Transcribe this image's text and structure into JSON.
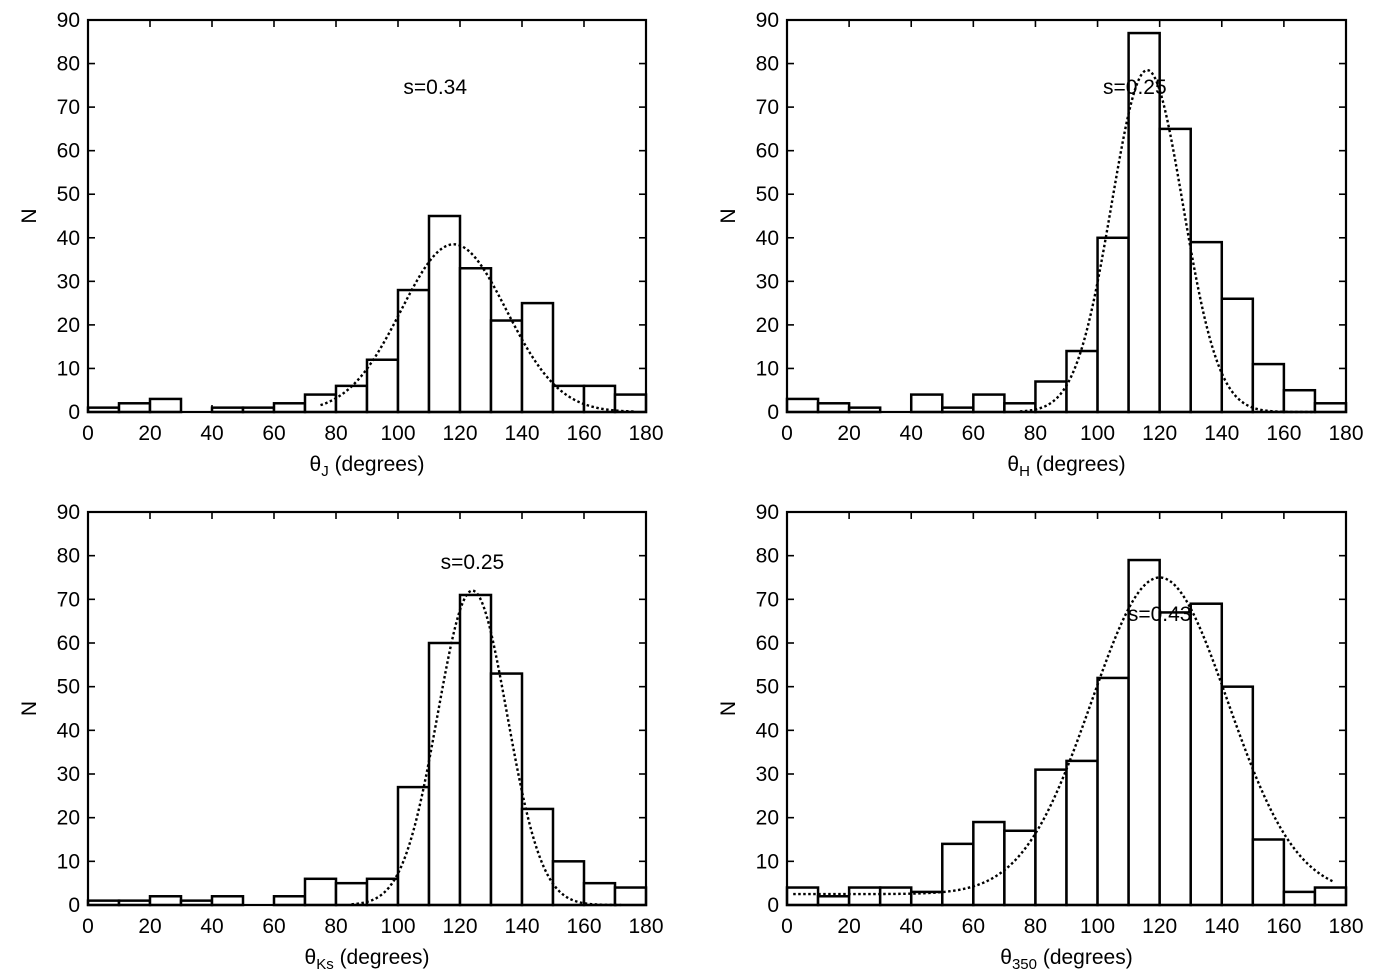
{
  "chart_data": [
    {
      "type": "bar",
      "bin_width": 10,
      "x": [
        0,
        10,
        20,
        30,
        40,
        50,
        60,
        70,
        80,
        90,
        100,
        110,
        120,
        130,
        140,
        150,
        160,
        170
      ],
      "values": [
        1,
        2,
        3,
        0,
        1,
        1,
        2,
        4,
        6,
        12,
        28,
        45,
        33,
        21,
        25,
        6,
        6,
        4
      ],
      "fit": {
        "style": "dotted",
        "mean": 118,
        "sigma": 17,
        "peak": 38.5,
        "x_range": [
          75,
          176
        ]
      },
      "annotation": "s=0.34",
      "xlabel_symbol": "θ",
      "xlabel_subscript": "J",
      "xlabel_rest": " (degrees)",
      "ylabel": "N",
      "xlim": [
        0,
        180
      ],
      "ylim": [
        0,
        90
      ],
      "xticks": [
        0,
        20,
        40,
        60,
        80,
        100,
        120,
        140,
        160,
        180
      ],
      "yticks": [
        0,
        10,
        20,
        30,
        40,
        50,
        60,
        70,
        80,
        90
      ],
      "grid": false
    },
    {
      "type": "bar",
      "bin_width": 10,
      "x": [
        0,
        10,
        20,
        30,
        40,
        50,
        60,
        70,
        80,
        90,
        100,
        110,
        120,
        130,
        140,
        150,
        160,
        170
      ],
      "values": [
        3,
        2,
        1,
        0,
        4,
        1,
        4,
        2,
        7,
        14,
        40,
        87,
        65,
        39,
        26,
        11,
        5,
        2
      ],
      "fit": {
        "style": "dotted",
        "mean": 116,
        "sigma": 11.5,
        "peak": 78.5,
        "x_range": [
          75,
          170
        ]
      },
      "annotation": "s=0.25",
      "xlabel_symbol": "θ",
      "xlabel_subscript": "H",
      "xlabel_rest": " (degrees)",
      "ylabel": "N",
      "xlim": [
        0,
        180
      ],
      "ylim": [
        0,
        90
      ],
      "xticks": [
        0,
        20,
        40,
        60,
        80,
        100,
        120,
        140,
        160,
        180
      ],
      "yticks": [
        0,
        10,
        20,
        30,
        40,
        50,
        60,
        70,
        80,
        90
      ],
      "grid": false
    },
    {
      "type": "bar",
      "bin_width": 10,
      "x": [
        0,
        10,
        20,
        30,
        40,
        50,
        60,
        70,
        80,
        90,
        100,
        110,
        120,
        130,
        140,
        150,
        160,
        170
      ],
      "values": [
        1,
        1,
        2,
        1,
        2,
        0,
        2,
        6,
        5,
        6,
        27,
        60,
        71,
        53,
        22,
        10,
        5,
        4
      ],
      "fit": {
        "style": "dotted",
        "mean": 124,
        "sigma": 11.2,
        "peak": 72,
        "x_range": [
          85,
          172
        ]
      },
      "annotation": "s=0.25",
      "xlabel_symbol": "θ",
      "xlabel_subscript": "Ks",
      "xlabel_rest": " (degrees)",
      "ylabel": "N",
      "xlim": [
        0,
        180
      ],
      "ylim": [
        0,
        90
      ],
      "xticks": [
        0,
        20,
        40,
        60,
        80,
        100,
        120,
        140,
        160,
        180
      ],
      "yticks": [
        0,
        10,
        20,
        30,
        40,
        50,
        60,
        70,
        80,
        90
      ],
      "grid": false
    },
    {
      "type": "bar",
      "bin_width": 10,
      "x": [
        0,
        10,
        20,
        30,
        40,
        50,
        60,
        70,
        80,
        90,
        100,
        110,
        120,
        130,
        140,
        150,
        160,
        170
      ],
      "values": [
        4,
        2,
        4,
        4,
        3,
        14,
        19,
        17,
        31,
        33,
        52,
        79,
        67,
        69,
        50,
        15,
        3,
        4
      ],
      "fit": {
        "style": "dotted",
        "mean": 120,
        "sigma": 22,
        "peak": 75,
        "x_range": [
          2,
          176
        ],
        "baseline": 2.5
      },
      "annotation": "s=0.43",
      "xlabel_symbol": "θ",
      "xlabel_subscript": "350",
      "xlabel_rest": " (degrees)",
      "ylabel": "N",
      "xlim": [
        0,
        180
      ],
      "ylim": [
        0,
        90
      ],
      "xticks": [
        0,
        20,
        40,
        60,
        80,
        100,
        120,
        140,
        160,
        180
      ],
      "yticks": [
        0,
        10,
        20,
        30,
        40,
        50,
        60,
        70,
        80,
        90
      ],
      "grid": false
    }
  ]
}
